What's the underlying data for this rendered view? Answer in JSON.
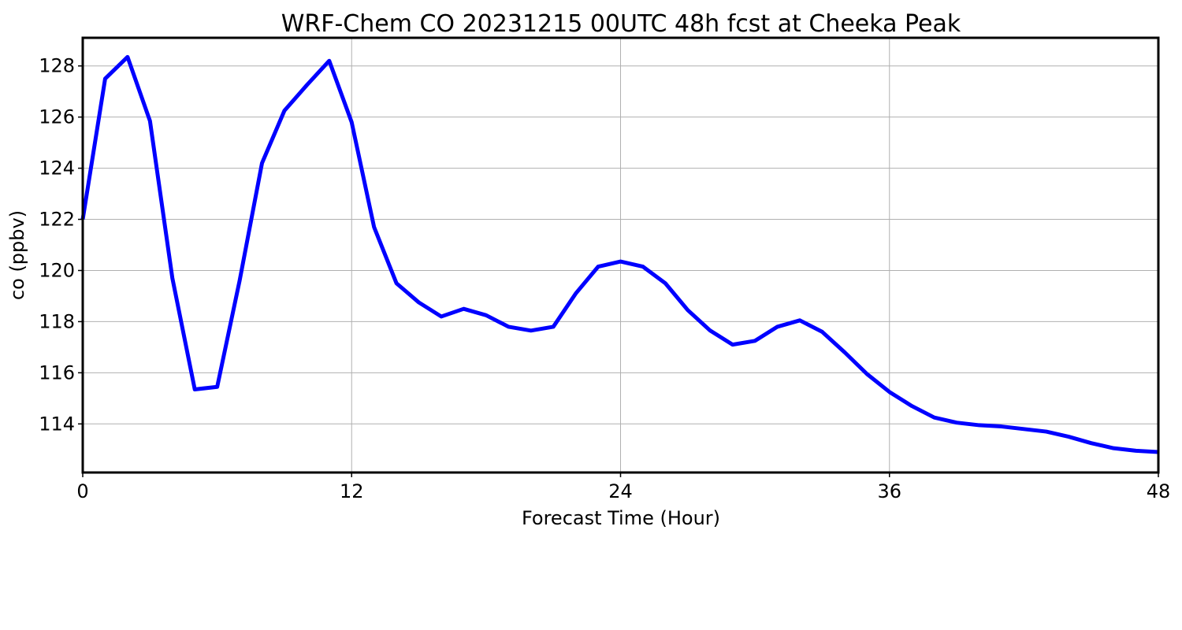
{
  "chart_data": {
    "type": "line",
    "title": "WRF-Chem CO  20231215 00UTC 48h fcst at Cheeka Peak",
    "xlabel": "Forecast Time (Hour)",
    "ylabel": "co  (ppbv)",
    "xlim": [
      0,
      48
    ],
    "ylim": [
      112.1,
      129.1
    ],
    "xticks": [
      0,
      12,
      24,
      36,
      48
    ],
    "xtick_labels": [
      "0",
      "12",
      "24",
      "36",
      "48"
    ],
    "yticks": [
      114,
      116,
      118,
      120,
      122,
      124,
      126,
      128
    ],
    "ytick_labels": [
      "114",
      "116",
      "118",
      "120",
      "122",
      "124",
      "126",
      "128"
    ],
    "grid": true,
    "line_color": "#0000ff",
    "x": [
      0,
      1,
      2,
      3,
      4,
      5,
      6,
      7,
      8,
      9,
      10,
      11,
      12,
      13,
      14,
      15,
      16,
      17,
      18,
      19,
      20,
      21,
      22,
      23,
      24,
      25,
      26,
      27,
      28,
      29,
      30,
      31,
      32,
      33,
      34,
      35,
      36,
      37,
      38,
      39,
      40,
      41,
      42,
      43,
      44,
      45,
      46,
      47,
      48
    ],
    "series": [
      {
        "values": [
          122.0,
          127.5,
          128.35,
          125.85,
          119.7,
          115.35,
          115.45,
          119.6,
          124.2,
          126.25,
          127.25,
          128.2,
          125.8,
          121.7,
          119.5,
          118.75,
          118.2,
          118.5,
          118.25,
          117.8,
          117.65,
          117.8,
          119.1,
          120.15,
          120.35,
          120.15,
          119.5,
          118.45,
          117.65,
          117.1,
          117.25,
          117.8,
          118.05,
          117.6,
          116.8,
          115.95,
          115.25,
          114.7,
          114.25,
          114.05,
          113.95,
          113.9,
          113.8,
          113.7,
          113.5,
          113.25,
          113.05,
          112.95,
          112.9
        ]
      }
    ]
  }
}
